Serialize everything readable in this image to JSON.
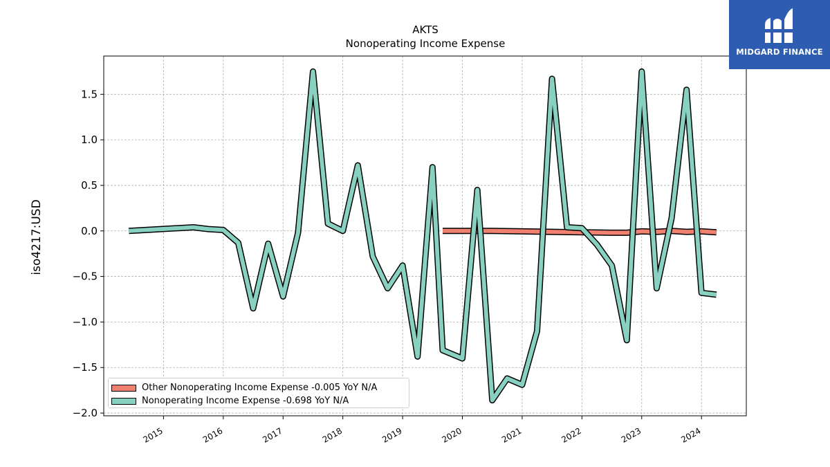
{
  "chart_data": {
    "type": "line",
    "title": "AKTS",
    "subtitle": "Nonoperating Income Expense",
    "xlabel": "",
    "ylabel": "iso4217:USD",
    "x_ticks": [
      "2015",
      "2016",
      "2017",
      "2018",
      "2019",
      "2020",
      "2021",
      "2022",
      "2023",
      "2024"
    ],
    "y_ticks": [
      "1.5",
      "1.0",
      "0.5",
      "0.0",
      "−0.5",
      "−1.0",
      "−1.5",
      "−2.0"
    ],
    "xlim": [
      2014.0,
      2024.75
    ],
    "ylim": [
      -2.03,
      1.92
    ],
    "grid": true,
    "legend_position": "lower-left",
    "series": [
      {
        "name": "Other Nonoperating Income Expense",
        "legend_label": "Other Nonoperating Income Expense  -0.005 YoY N/A",
        "color": "#f08070",
        "x": [
          2019.67,
          2020.0,
          2020.5,
          2021.0,
          2021.5,
          2022.0,
          2022.5,
          2022.75,
          2023.0,
          2023.25,
          2023.5,
          2023.75,
          2024.0,
          2024.25
        ],
        "y": [
          0.0,
          0.0,
          0.0,
          -0.005,
          -0.01,
          -0.015,
          -0.02,
          -0.02,
          -0.005,
          -0.01,
          0.0,
          -0.01,
          -0.005,
          -0.015
        ]
      },
      {
        "name": "Nonoperating Income Expense",
        "legend_label": "Nonoperating Income Expense  -0.698 YoY N/A",
        "color": "#88d0c0",
        "x": [
          2014.42,
          2015.5,
          2015.75,
          2016.0,
          2016.25,
          2016.5,
          2016.75,
          2017.0,
          2017.25,
          2017.5,
          2017.75,
          2018.0,
          2018.25,
          2018.5,
          2018.75,
          2019.0,
          2019.25,
          2019.5,
          2019.67,
          2020.0,
          2020.25,
          2020.5,
          2020.75,
          2021.0,
          2021.25,
          2021.5,
          2021.75,
          2022.0,
          2022.25,
          2022.5,
          2022.75,
          2023.0,
          2023.25,
          2023.5,
          2023.75,
          2024.0,
          2024.25
        ],
        "y": [
          0.0,
          0.04,
          0.02,
          0.01,
          -0.13,
          -0.85,
          -0.14,
          -0.72,
          -0.02,
          1.75,
          0.08,
          0.0,
          0.72,
          -0.28,
          -0.63,
          -0.38,
          -1.38,
          0.7,
          -1.31,
          -1.4,
          0.45,
          -1.86,
          -1.62,
          -1.69,
          -1.1,
          1.67,
          0.04,
          0.03,
          -0.15,
          -0.38,
          -1.2,
          1.75,
          -0.63,
          0.14,
          1.55,
          -0.68,
          -0.7
        ]
      }
    ]
  },
  "logo": {
    "text": "MIDGARD FINANCE"
  }
}
